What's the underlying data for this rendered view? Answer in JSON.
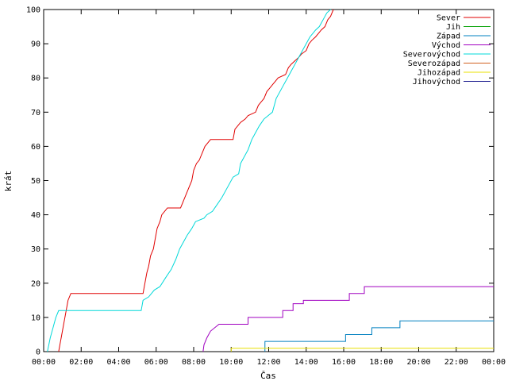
{
  "chart_data": {
    "type": "line",
    "xlabel": "Čas",
    "ylabel": "krát",
    "xlim": [
      0,
      24
    ],
    "ylim": [
      0,
      100
    ],
    "x_ticks": [
      {
        "value": 0,
        "label": "00:00"
      },
      {
        "value": 2,
        "label": "02:00"
      },
      {
        "value": 4,
        "label": "04:00"
      },
      {
        "value": 6,
        "label": "06:00"
      },
      {
        "value": 8,
        "label": "08:00"
      },
      {
        "value": 10,
        "label": "10:00"
      },
      {
        "value": 12,
        "label": "12:00"
      },
      {
        "value": 14,
        "label": "14:00"
      },
      {
        "value": 16,
        "label": "16:00"
      },
      {
        "value": 18,
        "label": "18:00"
      },
      {
        "value": 20,
        "label": "20:00"
      },
      {
        "value": 22,
        "label": "22:00"
      },
      {
        "value": 24,
        "label": "00:00"
      }
    ],
    "y_ticks": [
      0,
      10,
      20,
      30,
      40,
      50,
      60,
      70,
      80,
      90,
      100
    ],
    "grid": false,
    "legend_position": "top-right",
    "series": [
      {
        "name": "Sever",
        "color": "#e00000",
        "points": [
          [
            0.8,
            0
          ],
          [
            0.9,
            3
          ],
          [
            1.0,
            6
          ],
          [
            1.1,
            9
          ],
          [
            1.2,
            12
          ],
          [
            1.3,
            15
          ],
          [
            1.45,
            17
          ],
          [
            5.3,
            17
          ],
          [
            5.4,
            20
          ],
          [
            5.5,
            23
          ],
          [
            5.6,
            25
          ],
          [
            5.7,
            28
          ],
          [
            5.85,
            30
          ],
          [
            5.95,
            33
          ],
          [
            6.05,
            36
          ],
          [
            6.2,
            38
          ],
          [
            6.3,
            40
          ],
          [
            6.45,
            41
          ],
          [
            6.6,
            42
          ],
          [
            7.3,
            42
          ],
          [
            7.45,
            44
          ],
          [
            7.6,
            46
          ],
          [
            7.75,
            48
          ],
          [
            7.9,
            50
          ],
          [
            8.0,
            53
          ],
          [
            8.15,
            55
          ],
          [
            8.3,
            56
          ],
          [
            8.45,
            58
          ],
          [
            8.6,
            60
          ],
          [
            8.75,
            61
          ],
          [
            8.9,
            62
          ],
          [
            9.0,
            62
          ],
          [
            10.1,
            62
          ],
          [
            10.2,
            65
          ],
          [
            10.35,
            66
          ],
          [
            10.5,
            67
          ],
          [
            10.75,
            68
          ],
          [
            10.9,
            69
          ],
          [
            11.3,
            70
          ],
          [
            11.45,
            72
          ],
          [
            11.6,
            73
          ],
          [
            11.75,
            74
          ],
          [
            11.9,
            76
          ],
          [
            12.05,
            77
          ],
          [
            12.2,
            78
          ],
          [
            12.35,
            79
          ],
          [
            12.5,
            80
          ],
          [
            12.9,
            81
          ],
          [
            13.05,
            83
          ],
          [
            13.2,
            84
          ],
          [
            13.4,
            85
          ],
          [
            13.6,
            86
          ],
          [
            13.75,
            87
          ],
          [
            14.0,
            88
          ],
          [
            14.15,
            90
          ],
          [
            14.3,
            91
          ],
          [
            14.5,
            92
          ],
          [
            14.65,
            93
          ],
          [
            14.8,
            94
          ],
          [
            15.0,
            95
          ],
          [
            15.15,
            97
          ],
          [
            15.3,
            98
          ],
          [
            15.45,
            100
          ]
        ]
      },
      {
        "name": "Jih",
        "color": "#00a000",
        "points": []
      },
      {
        "name": "Západ",
        "color": "#0080c0",
        "points": [
          [
            11.8,
            0
          ],
          [
            11.8,
            3
          ],
          [
            16.1,
            3
          ],
          [
            16.1,
            5
          ],
          [
            17.5,
            5
          ],
          [
            17.5,
            7
          ],
          [
            19.0,
            7
          ],
          [
            19.0,
            9
          ],
          [
            24.0,
            9
          ]
        ]
      },
      {
        "name": "Východ",
        "color": "#a000c0",
        "points": [
          [
            8.5,
            0
          ],
          [
            8.55,
            2
          ],
          [
            8.7,
            4
          ],
          [
            8.9,
            6
          ],
          [
            9.35,
            8
          ],
          [
            10.9,
            8
          ],
          [
            10.9,
            10
          ],
          [
            12.75,
            10
          ],
          [
            12.75,
            12
          ],
          [
            13.3,
            12
          ],
          [
            13.3,
            14
          ],
          [
            13.85,
            14
          ],
          [
            13.85,
            15
          ],
          [
            16.3,
            15
          ],
          [
            16.3,
            17
          ],
          [
            17.1,
            17
          ],
          [
            17.1,
            19
          ],
          [
            24.0,
            19
          ]
        ]
      },
      {
        "name": "Severovýchod",
        "color": "#00d8d8",
        "points": [
          [
            0.2,
            0
          ],
          [
            0.35,
            4
          ],
          [
            0.5,
            7
          ],
          [
            0.65,
            10
          ],
          [
            0.8,
            12
          ],
          [
            5.2,
            12
          ],
          [
            5.3,
            15
          ],
          [
            5.6,
            16
          ],
          [
            5.9,
            18
          ],
          [
            6.2,
            19
          ],
          [
            6.55,
            22
          ],
          [
            6.8,
            24
          ],
          [
            7.05,
            27
          ],
          [
            7.25,
            30
          ],
          [
            7.45,
            32
          ],
          [
            7.65,
            34
          ],
          [
            7.9,
            36
          ],
          [
            8.1,
            38
          ],
          [
            8.55,
            39
          ],
          [
            8.7,
            40
          ],
          [
            9.0,
            41
          ],
          [
            9.25,
            43
          ],
          [
            9.5,
            45
          ],
          [
            9.7,
            47
          ],
          [
            9.9,
            49
          ],
          [
            10.1,
            51
          ],
          [
            10.4,
            52
          ],
          [
            10.5,
            55
          ],
          [
            10.7,
            57
          ],
          [
            10.9,
            59
          ],
          [
            11.1,
            62
          ],
          [
            11.3,
            64
          ],
          [
            11.5,
            66
          ],
          [
            11.75,
            68
          ],
          [
            12.2,
            70
          ],
          [
            12.4,
            74
          ],
          [
            12.6,
            76
          ],
          [
            12.8,
            78
          ],
          [
            13.0,
            80
          ],
          [
            13.2,
            82
          ],
          [
            13.4,
            84
          ],
          [
            13.6,
            86
          ],
          [
            13.8,
            88
          ],
          [
            14.0,
            90
          ],
          [
            14.2,
            92
          ],
          [
            14.35,
            93
          ],
          [
            14.5,
            94
          ],
          [
            14.7,
            95
          ],
          [
            14.9,
            97
          ],
          [
            15.1,
            99
          ],
          [
            15.3,
            100
          ]
        ]
      },
      {
        "name": "Severozápad",
        "color": "#d06020",
        "points": []
      },
      {
        "name": "Jihozápad",
        "color": "#e8e000",
        "points": [
          [
            10.0,
            0
          ],
          [
            10.0,
            1
          ],
          [
            24.0,
            1
          ]
        ]
      },
      {
        "name": "Jihovýchod",
        "color": "#202090",
        "points": []
      }
    ]
  }
}
